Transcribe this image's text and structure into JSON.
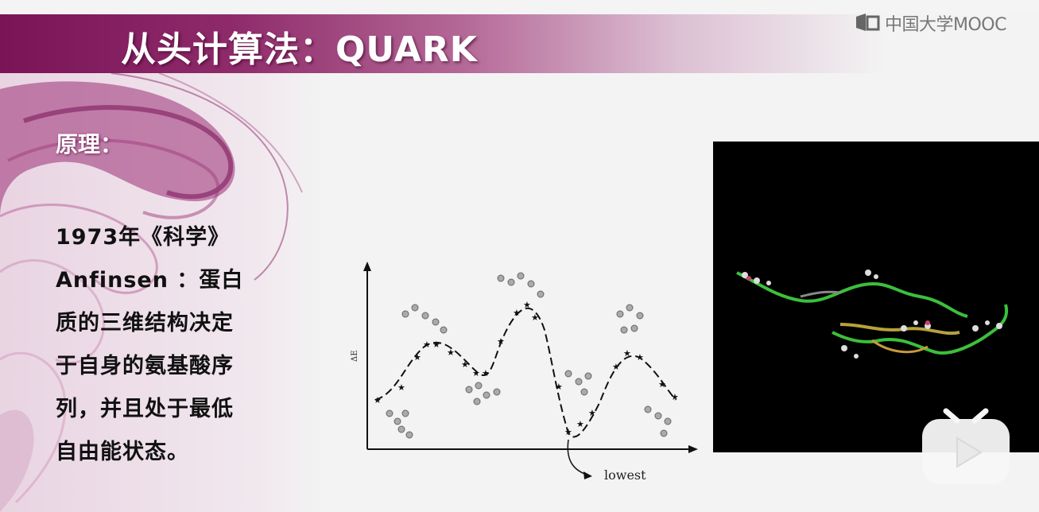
{
  "slide": {
    "title": "从头计算法：QUARK",
    "logo_text": "中国大学MOOC",
    "principle_label": "原理：",
    "body_lines": [
      "1973年《科学》",
      "Anfinsen ：蛋白",
      "质的三维结构决定",
      "于自身的氨基酸序",
      "列，并且处于最低",
      "自由能状态。"
    ]
  },
  "figure": {
    "y_axis_label": "ΔE",
    "annotation": "lowest"
  },
  "colors": {
    "title_band": "#7a1457",
    "accent": "#b56a98",
    "panel_bg": "#000000"
  },
  "icons": {
    "logo": "mooc-logo-icon",
    "play": "play-button-icon"
  }
}
